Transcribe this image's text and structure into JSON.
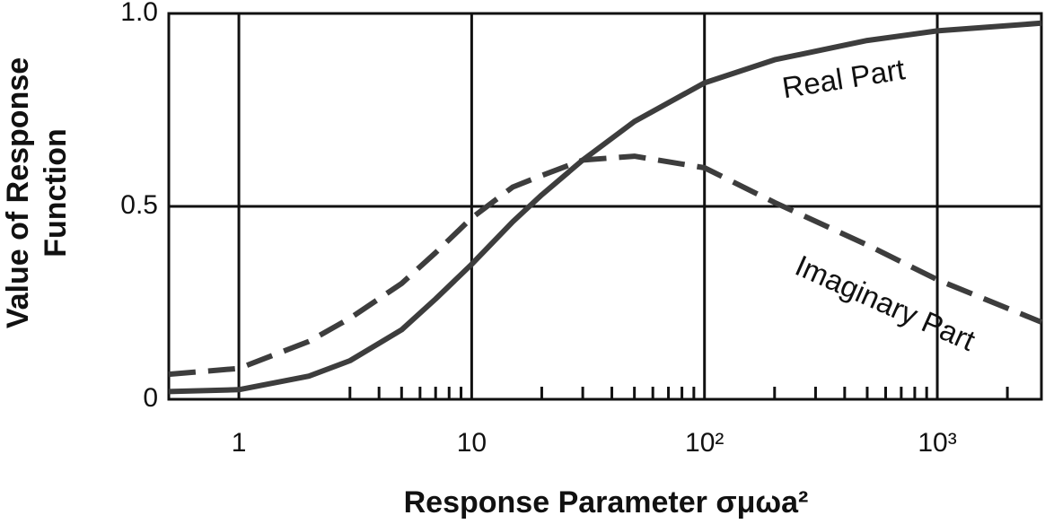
{
  "chart_data": {
    "type": "line",
    "xlabel": "Response Parameter σμωa²",
    "ylabel": [
      "Value of Response",
      "Function"
    ],
    "annotations": [
      "Real Part",
      "Imaginary Part"
    ],
    "x": [
      0.5,
      1,
      2,
      3,
      5,
      7,
      10,
      15,
      20,
      30,
      50,
      100,
      200,
      500,
      1000,
      2800
    ],
    "series": [
      {
        "name": "Real Part",
        "color": "#3d3d3d",
        "dash": false,
        "values": [
          0.02,
          0.025,
          0.06,
          0.1,
          0.18,
          0.26,
          0.35,
          0.46,
          0.53,
          0.62,
          0.72,
          0.82,
          0.88,
          0.93,
          0.955,
          0.975
        ]
      },
      {
        "name": "Imaginary Part",
        "color": "#3d3d3d",
        "dash": true,
        "values": [
          0.065,
          0.08,
          0.15,
          0.21,
          0.3,
          0.38,
          0.47,
          0.55,
          0.58,
          0.62,
          0.63,
          0.6,
          0.51,
          0.4,
          0.31,
          0.2
        ]
      }
    ],
    "log_x": true,
    "xlim": [
      0.5,
      2800
    ],
    "ylim": [
      0,
      1
    ],
    "xticks": [
      1,
      10,
      {
        "value": 100,
        "label": "10²"
      },
      {
        "value": 1000,
        "label": "10³"
      }
    ],
    "xminorticks": [
      3,
      4,
      5,
      6,
      7,
      8,
      9,
      20,
      30,
      40,
      50,
      60,
      70,
      80,
      90,
      200,
      300,
      400,
      500,
      600,
      700,
      800,
      900,
      2000
    ],
    "yticks": [
      0,
      0.5,
      {
        "value": 1,
        "label": "1.0"
      }
    ],
    "grid": true
  }
}
